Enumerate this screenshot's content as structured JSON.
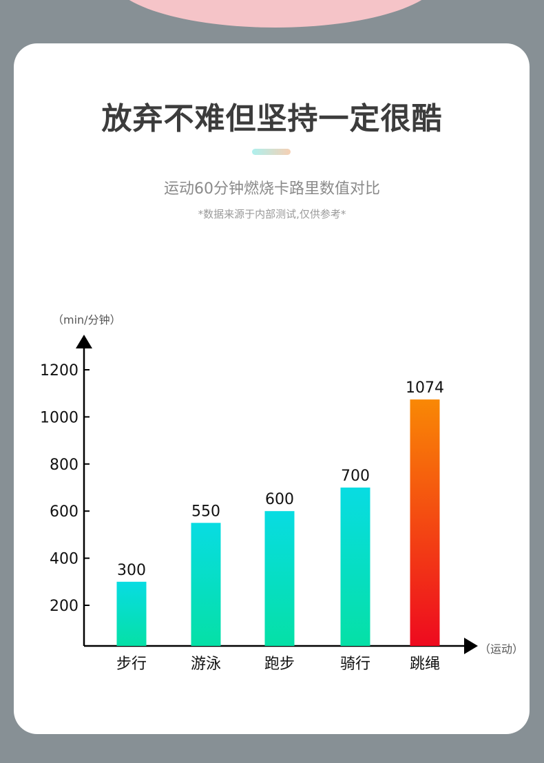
{
  "header": {
    "title": "放弃不难但坚持一定很酷",
    "subtitle": "运动60分钟燃烧卡路里数值对比",
    "note": "*数据来源于内部测试,仅供参考*"
  },
  "chart_data": {
    "type": "bar",
    "ylabel": "（min/分钟）",
    "xlabel": "（运动）",
    "categories": [
      "步行",
      "游泳",
      "跑步",
      "骑行",
      "跳绳"
    ],
    "values": [
      300,
      550,
      600,
      700,
      1074
    ],
    "value_labels": [
      "300",
      "550",
      "600",
      "700",
      "1074"
    ],
    "yticks": [
      200,
      400,
      600,
      800,
      1000,
      1200
    ],
    "ylim": [
      0,
      1300
    ],
    "grid": false,
    "colors": {
      "normal_top": "#08dce2",
      "normal_bottom": "#05e0a6",
      "highlight_top": "#f98805",
      "highlight_bottom": "#ee0a1f"
    }
  }
}
